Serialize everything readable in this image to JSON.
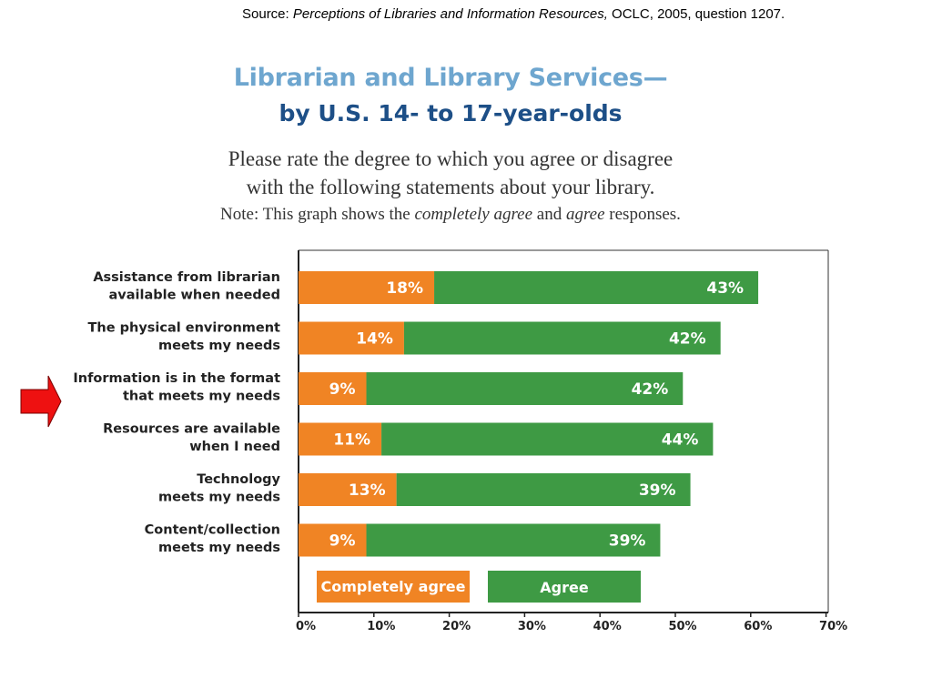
{
  "source": {
    "prefix": "Source: ",
    "title": "Perceptions of Libraries and Information Resources,",
    "suffix": " OCLC, 2005, question 1207."
  },
  "heading": {
    "title": "Librarian and Library Services—",
    "subtitle": "by U.S. 14- to 17-year-olds"
  },
  "prompt": {
    "line1": "Please rate the degree to which you agree or disagree",
    "line2": "with the following statements about your library."
  },
  "note": {
    "prefix": "Note: This graph shows the ",
    "term1": "completely agree",
    "middle": " and ",
    "term2": "agree",
    "suffix": " responses."
  },
  "arrow": {
    "color": "#ee1111",
    "icon": "right-arrow-icon"
  },
  "colors": {
    "completely_agree": "#f08424",
    "agree": "#3e9a44"
  },
  "chart_data": {
    "type": "bar",
    "orientation": "horizontal",
    "stacked": true,
    "categories": [
      [
        "Assistance from librarian",
        "available when needed"
      ],
      [
        "The physical environment",
        "meets my needs"
      ],
      [
        "Information is in the format",
        "that meets my needs"
      ],
      [
        "Resources are available",
        "when I need"
      ],
      [
        "Technology",
        "meets my needs"
      ],
      [
        "Content/collection",
        "meets my needs"
      ]
    ],
    "series": [
      {
        "name": "Completely agree",
        "values": [
          18,
          14,
          9,
          11,
          13,
          9
        ],
        "labels": [
          "18%",
          "14%",
          "9%",
          "11%",
          "13%",
          "9%"
        ]
      },
      {
        "name": "Agree",
        "values": [
          43,
          42,
          42,
          44,
          39,
          39
        ],
        "labels": [
          "43%",
          "42%",
          "42%",
          "44%",
          "39%",
          "39%"
        ]
      }
    ],
    "xlim": [
      0,
      70
    ],
    "ticks": [
      "0%",
      "10%",
      "20%",
      "30%",
      "40%",
      "50%",
      "60%",
      "70%"
    ],
    "legend_placement": "bottom, inside plot",
    "highlighted_category": "Information is in the format that meets my needs"
  }
}
